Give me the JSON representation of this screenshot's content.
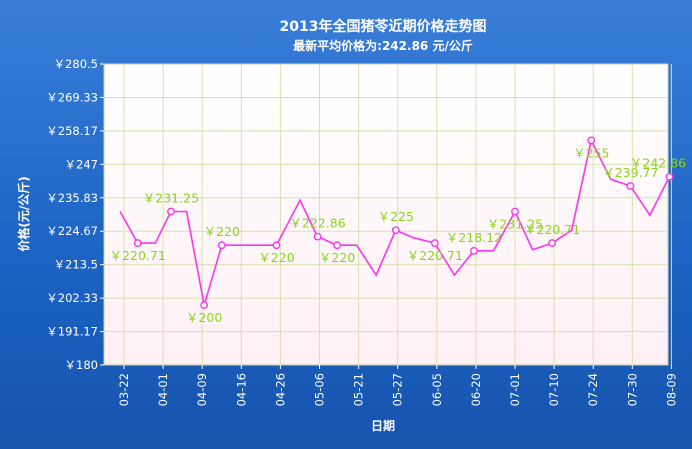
{
  "chart_data": {
    "type": "line",
    "title": "2013年全国猪苓近期价格走势图",
    "subtitle": "最新平均价格为:242.86 元/公斤",
    "xlabel": "日期",
    "ylabel": "价格(元/公斤)",
    "ylim": [
      180,
      280.5
    ],
    "y_ticks": [
      "￥180",
      "￥191.17",
      "￥202.33",
      "￥213.5",
      "￥224.67",
      "￥235.83",
      "￥247",
      "￥258.17",
      "￥269.33",
      "￥280.5"
    ],
    "x_tick_labels": [
      "03-22",
      "04-01",
      "04-09",
      "04-16",
      "04-26",
      "05-06",
      "05-21",
      "05-27",
      "06-05",
      "06-20",
      "07-01",
      "07-10",
      "07-24",
      "07-30",
      "08-09"
    ],
    "grid": true,
    "legend": "none",
    "series": [
      {
        "color": "#ff33ee",
        "values": [
          231.25,
          220.71,
          220.71,
          231.25,
          231.25,
          200,
          220,
          220,
          220,
          220,
          235,
          222.86,
          220,
          220,
          210,
          225,
          222.5,
          220.71,
          210,
          218.12,
          218.12,
          231.25,
          218.5,
          220.71,
          225,
          255,
          242,
          239.77,
          230,
          242.86
        ],
        "x_index": [
          -0.1,
          0.35,
          0.8,
          1.2,
          1.6,
          2.05,
          2.5,
          2.95,
          3.45,
          3.9,
          4.5,
          4.95,
          5.45,
          5.95,
          6.45,
          6.95,
          7.4,
          7.95,
          8.45,
          8.95,
          9.45,
          10,
          10.45,
          10.95,
          11.45,
          11.95,
          12.45,
          12.95,
          13.45,
          13.95
        ],
        "labels": [
          {
            "i": 1,
            "text": "￥220.71"
          },
          {
            "i": 3,
            "text": "￥231.25"
          },
          {
            "i": 5,
            "text": "￥200"
          },
          {
            "i": 6,
            "text": "￥220"
          },
          {
            "i": 9,
            "text": "￥220"
          },
          {
            "i": 11,
            "text": "￥222.86"
          },
          {
            "i": 12,
            "text": "￥220"
          },
          {
            "i": 15,
            "text": "￥225"
          },
          {
            "i": 17,
            "text": "￥220.71"
          },
          {
            "i": 19,
            "text": "￥218.12"
          },
          {
            "i": 21,
            "text": "￥231.25"
          },
          {
            "i": 23,
            "text": "￥220.71"
          },
          {
            "i": 25,
            "text": "￥255"
          },
          {
            "i": 27,
            "text": "￥239.77"
          },
          {
            "i": 29,
            "text": "￥242.86"
          }
        ]
      }
    ]
  }
}
